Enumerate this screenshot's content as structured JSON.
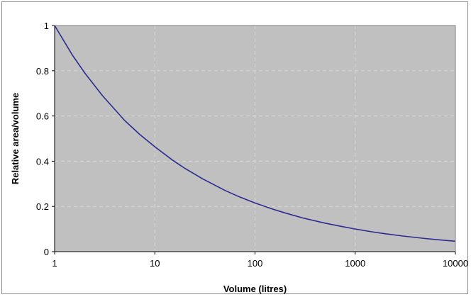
{
  "chart_data": {
    "type": "line",
    "title": "",
    "xlabel": "Volume (litres)",
    "ylabel": "Relative area/volume",
    "x_scale": "log",
    "xlim": [
      1,
      10000
    ],
    "ylim": [
      0,
      1
    ],
    "x_ticks": [
      1,
      10,
      100,
      1000,
      10000
    ],
    "x_tick_labels": [
      "1",
      "10",
      "100",
      "1000",
      "10000"
    ],
    "y_ticks": [
      0,
      0.2,
      0.4,
      0.6,
      0.8,
      1
    ],
    "y_tick_labels": [
      "0",
      "0.2",
      "0.4",
      "0.6",
      "0.8",
      "1"
    ],
    "grid": true,
    "legend": "none",
    "series": [
      {
        "x": [
          1,
          1.5,
          2,
          3,
          5,
          7,
          10,
          15,
          20,
          30,
          50,
          70,
          100,
          150,
          200,
          300,
          500,
          700,
          1000,
          1500,
          2000,
          3000,
          5000,
          7000,
          10000
        ],
        "y": [
          1,
          0.87,
          0.79,
          0.69,
          0.58,
          0.52,
          0.464,
          0.405,
          0.368,
          0.322,
          0.271,
          0.242,
          0.215,
          0.188,
          0.171,
          0.149,
          0.126,
          0.113,
          0.1,
          0.087,
          0.079,
          0.069,
          0.058,
          0.052,
          0.046
        ]
      }
    ],
    "colors": {
      "line": "#2b2b8f",
      "plot_background": "#c0c0c0",
      "gridline": "#d9d9d9"
    }
  }
}
